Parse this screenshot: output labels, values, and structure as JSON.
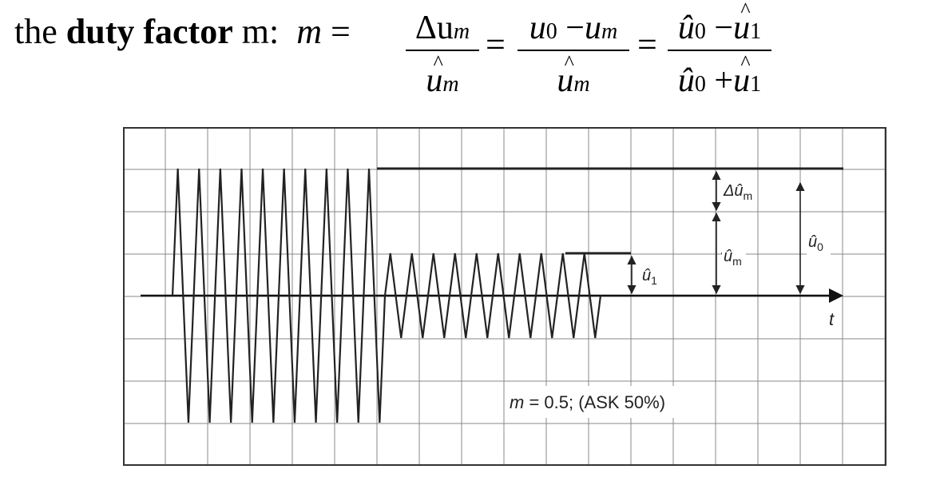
{
  "formula": {
    "lead_prefix": "the",
    "lead_bold": "duty factor",
    "lead_suffix": "m:",
    "lead_var": "m",
    "equals": "=",
    "frac1": {
      "num_main": "Δu",
      "num_sub": "m",
      "den_main": "u",
      "den_sub": "m",
      "den_hat": "^"
    },
    "frac2": {
      "num_a": "u",
      "num_a_sub": "0",
      "num_op": " −",
      "num_b": "u",
      "num_b_sub": "m",
      "den_main": "u",
      "den_sub": "m",
      "den_hat": "^"
    },
    "frac3": {
      "num_a": "û",
      "num_a_sub": "0",
      "num_op": " −",
      "num_b": "u",
      "num_b_sub": "1",
      "num_b_hat": "^",
      "den_a": "û",
      "den_a_sub": "0",
      "den_op": " +",
      "den_b": "u",
      "den_b_sub": "1",
      "den_b_hat": "^"
    }
  },
  "diagram": {
    "labels": {
      "delta_um": "Δû",
      "delta_um_sub": "m",
      "um": "û",
      "um_sub": "m",
      "u0": "û",
      "u0_sub": "0",
      "u1": "û",
      "u1_sub": "1",
      "t_axis": "t",
      "caption_var": "m",
      "caption_rest": " = 0.5; (ASK 50%)"
    },
    "modulation": {
      "m": 0.5,
      "carrier_high_periods": 10,
      "carrier_low_periods": 10
    }
  }
}
